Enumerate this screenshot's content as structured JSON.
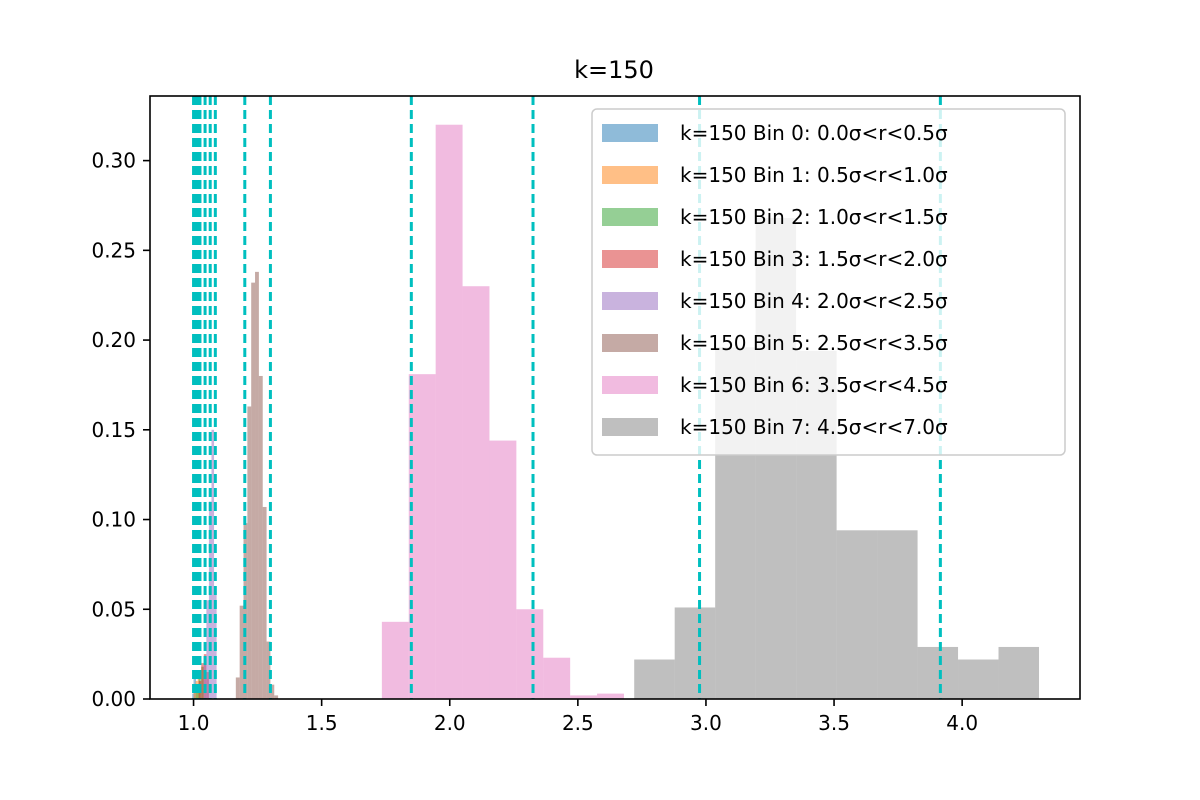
{
  "chart_data": {
    "type": "bar",
    "title": "k=150",
    "xlabel": "",
    "ylabel": "",
    "xlim": [
      0.83,
      4.46
    ],
    "ylim": [
      0,
      0.336
    ],
    "grid": false,
    "legend_position": "top-right",
    "x_ticks": [
      "1.0",
      "1.5",
      "2.0",
      "2.5",
      "3.0",
      "3.5",
      "4.0"
    ],
    "y_ticks": [
      "0.00",
      "0.05",
      "0.10",
      "0.15",
      "0.20",
      "0.25",
      "0.30"
    ],
    "series": [
      {
        "name": "k=150 Bin 0: 0.0σ<r<0.5σ",
        "color": "#1f77b4",
        "bins": [
          [
            0.995,
            1.0,
            0.003
          ],
          [
            1.0,
            1.005,
            0.012
          ],
          [
            1.005,
            1.01,
            0.015
          ]
        ]
      },
      {
        "name": "k=150 Bin 1: 0.5σ<r<1.0σ",
        "color": "#ff7f0e",
        "bins": [
          [
            1.0,
            1.008,
            0.006
          ],
          [
            1.008,
            1.016,
            0.01
          ],
          [
            1.016,
            1.024,
            0.013
          ]
        ]
      },
      {
        "name": "k=150 Bin 2: 1.0σ<r<1.5σ",
        "color": "#2ca02c",
        "bins": [
          [
            1.01,
            1.02,
            0.008
          ],
          [
            1.02,
            1.03,
            0.014
          ],
          [
            1.03,
            1.04,
            0.018
          ]
        ]
      },
      {
        "name": "k=150 Bin 3: 1.5σ<r<2.0σ",
        "color": "#d62728",
        "bins": [
          [
            1.02,
            1.03,
            0.01
          ],
          [
            1.03,
            1.04,
            0.02
          ],
          [
            1.04,
            1.05,
            0.025
          ],
          [
            1.05,
            1.06,
            0.015
          ]
        ]
      },
      {
        "name": "k=150 Bin 4: 2.0σ<r<2.5σ",
        "color": "#9467bd",
        "bins": [
          [
            1.04,
            1.05,
            0.02
          ],
          [
            1.05,
            1.06,
            0.055
          ],
          [
            1.06,
            1.07,
            0.11
          ],
          [
            1.07,
            1.08,
            0.15
          ],
          [
            1.08,
            1.09,
            0.06
          ]
        ]
      },
      {
        "name": "k=150 Bin 5: 2.5σ<r<3.5σ",
        "color": "#8c564b",
        "bins": [
          [
            1.165,
            1.18,
            0.012
          ],
          [
            1.18,
            1.195,
            0.052
          ],
          [
            1.195,
            1.21,
            0.098
          ],
          [
            1.21,
            1.225,
            0.163
          ],
          [
            1.225,
            1.24,
            0.232
          ],
          [
            1.24,
            1.255,
            0.238
          ],
          [
            1.255,
            1.27,
            0.18
          ],
          [
            1.27,
            1.285,
            0.107
          ],
          [
            1.285,
            1.3,
            0.032
          ],
          [
            1.3,
            1.315,
            0.008
          ],
          [
            1.315,
            1.33,
            0.002
          ]
        ]
      },
      {
        "name": "k=150 Bin 6: 3.5σ<r<4.5σ",
        "color": "#e377c2",
        "bins": [
          [
            1.735,
            1.84,
            0.043
          ],
          [
            1.84,
            1.945,
            0.181
          ],
          [
            1.945,
            2.05,
            0.32
          ],
          [
            2.05,
            2.155,
            0.23
          ],
          [
            2.155,
            2.26,
            0.144
          ],
          [
            2.26,
            2.365,
            0.05
          ],
          [
            2.365,
            2.47,
            0.023
          ],
          [
            2.47,
            2.575,
            0.002
          ],
          [
            2.575,
            2.68,
            0.003
          ]
        ]
      },
      {
        "name": "k=150 Bin 7: 4.5σ<r<7.0σ",
        "color": "#7f7f7f",
        "bins": [
          [
            2.72,
            2.878,
            0.022
          ],
          [
            2.878,
            3.036,
            0.051
          ],
          [
            3.036,
            3.194,
            0.196
          ],
          [
            3.194,
            3.352,
            0.268
          ],
          [
            3.352,
            3.51,
            0.194
          ],
          [
            3.51,
            3.668,
            0.094
          ],
          [
            3.668,
            3.826,
            0.094
          ],
          [
            3.826,
            3.984,
            0.029
          ],
          [
            3.984,
            4.142,
            0.022
          ],
          [
            4.142,
            4.3,
            0.029
          ]
        ]
      }
    ],
    "vlines": [
      1.0,
      1.005,
      1.015,
      1.025,
      1.045,
      1.065,
      1.085,
      1.2,
      1.3,
      1.85,
      2.325,
      2.975,
      3.915
    ],
    "vline_color": "#00bfbf"
  }
}
